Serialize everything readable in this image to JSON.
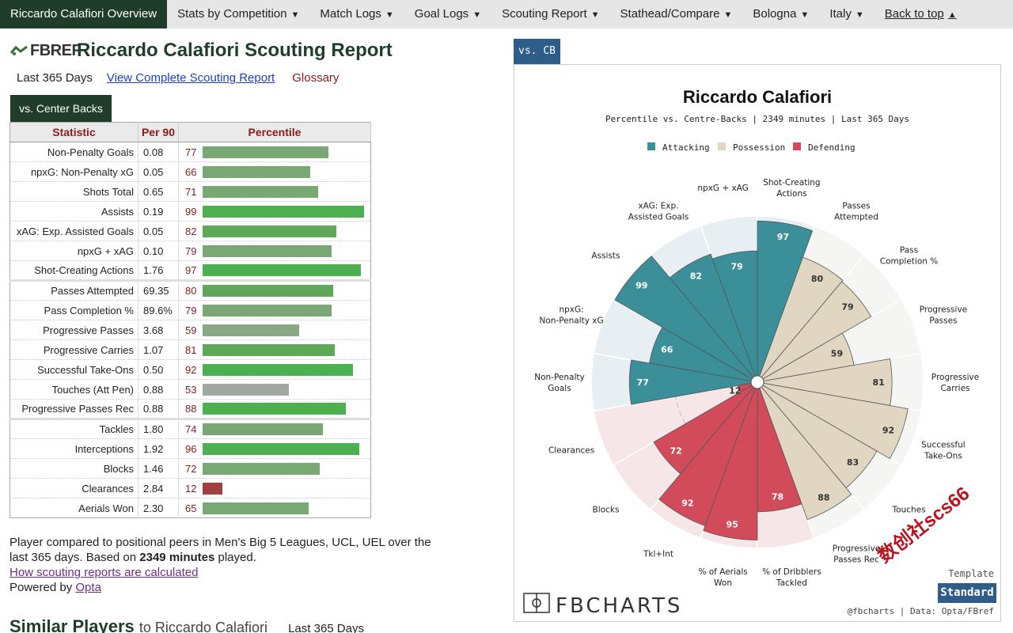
{
  "nav": [
    {
      "label": "Riccardo Calafiori Overview",
      "active": true,
      "caret": false
    },
    {
      "label": "Stats by Competition",
      "caret": true
    },
    {
      "label": "Match Logs",
      "caret": true
    },
    {
      "label": "Goal Logs",
      "caret": true
    },
    {
      "label": "Scouting Report",
      "caret": true
    },
    {
      "label": "Stathead/Compare",
      "caret": true
    },
    {
      "label": "Bologna",
      "caret": true
    },
    {
      "label": "Italy",
      "caret": true
    },
    {
      "label": "Back to top",
      "caret": true,
      "up": true
    }
  ],
  "logo_text": "FBREF",
  "title": "Riccardo Calafiori Scouting Report",
  "period": "Last 365 Days",
  "view_link": "View Complete Scouting Report",
  "glossary": "Glossary",
  "tab": "vs. Center Backs",
  "table": {
    "headers": [
      "Statistic",
      "Per 90",
      "Percentile"
    ],
    "rows": [
      {
        "stat": "Non-Penalty Goals",
        "p90": "0.08",
        "pct": 77,
        "color": "#7aa874"
      },
      {
        "stat": "npxG: Non-Penalty xG",
        "p90": "0.05",
        "pct": 66,
        "color": "#7aa874"
      },
      {
        "stat": "Shots Total",
        "p90": "0.65",
        "pct": 71,
        "color": "#7aa874"
      },
      {
        "stat": "Assists",
        "p90": "0.19",
        "pct": 99,
        "color": "#4caf50"
      },
      {
        "stat": "xAG: Exp. Assisted Goals",
        "p90": "0.05",
        "pct": 82,
        "color": "#5fa85a"
      },
      {
        "stat": "npxG + xAG",
        "p90": "0.10",
        "pct": 79,
        "color": "#7aa874"
      },
      {
        "stat": "Shot-Creating Actions",
        "p90": "1.76",
        "pct": 97,
        "color": "#4caf50"
      },
      {
        "stat": "Passes Attempted",
        "p90": "69.35",
        "pct": 80,
        "color": "#5fa85a",
        "gap": true
      },
      {
        "stat": "Pass Completion %",
        "p90": "89.6%",
        "pct": 79,
        "color": "#7aa874"
      },
      {
        "stat": "Progressive Passes",
        "p90": "3.68",
        "pct": 59,
        "color": "#8aa884"
      },
      {
        "stat": "Progressive Carries",
        "p90": "1.07",
        "pct": 81,
        "color": "#5fa85a"
      },
      {
        "stat": "Successful Take-Ons",
        "p90": "0.50",
        "pct": 92,
        "color": "#4caf50"
      },
      {
        "stat": "Touches (Att Pen)",
        "p90": "0.88",
        "pct": 53,
        "color": "#a0a8a0"
      },
      {
        "stat": "Progressive Passes Rec",
        "p90": "0.88",
        "pct": 88,
        "color": "#4caf50"
      },
      {
        "stat": "Tackles",
        "p90": "1.80",
        "pct": 74,
        "color": "#7aa874",
        "gap": true
      },
      {
        "stat": "Interceptions",
        "p90": "1.92",
        "pct": 96,
        "color": "#4caf50"
      },
      {
        "stat": "Blocks",
        "p90": "1.46",
        "pct": 72,
        "color": "#7aa874"
      },
      {
        "stat": "Clearances",
        "p90": "2.84",
        "pct": 12,
        "color": "#a04040"
      },
      {
        "stat": "Aerials Won",
        "p90": "2.30",
        "pct": 65,
        "color": "#7aa874"
      }
    ]
  },
  "footer": {
    "line1": "Player compared to positional peers in Men's Big 5 Leagues, UCL, UEL over the last 365 days. Based on ",
    "minutes": "2349 minutes",
    "line1_end": " played.",
    "howlink": "How scouting reports are calculated",
    "powered": "Powered by ",
    "opta": "Opta"
  },
  "similar": {
    "title": "Similar Players",
    "to": "to Riccardo Calafiori",
    "period": "Last 365 Days"
  },
  "chart_tab": "vs. CB",
  "chart_data": {
    "type": "polar-bar",
    "title": "Riccardo Calafiori",
    "subtitle": "Percentile vs. Centre-Backs | 2349 minutes | Last 365 Days",
    "legend": [
      {
        "name": "Attacking",
        "color": "#3a8f99"
      },
      {
        "name": "Possession",
        "color": "#e0d6c2"
      },
      {
        "name": "Defending",
        "color": "#d24b5a"
      }
    ],
    "bg_colors": {
      "Attacking": "#e8eff2",
      "Possession": "#f5f5f3",
      "Defending": "#f7e6e8"
    },
    "slices": [
      {
        "label": "Shot-Creating Actions",
        "value": 97,
        "group": "Attacking"
      },
      {
        "label": "Passes Attempted",
        "value": 80,
        "group": "Possession"
      },
      {
        "label": "Pass Completion %",
        "value": 79,
        "group": "Possession"
      },
      {
        "label": "Progressive Passes",
        "value": 59,
        "group": "Possession"
      },
      {
        "label": "Progressive Carries",
        "value": 81,
        "group": "Possession"
      },
      {
        "label": "Successful Take-Ons",
        "value": 92,
        "group": "Possession"
      },
      {
        "label": "Touches",
        "value": 83,
        "group": "Possession"
      },
      {
        "label": "Progressive Passes Rec",
        "value": 88,
        "group": "Possession"
      },
      {
        "label": "% of Dribblers Tackled",
        "value": 78,
        "group": "Defending"
      },
      {
        "label": "% of Aerials Won",
        "value": 95,
        "group": "Defending"
      },
      {
        "label": "Tkl+Int",
        "value": 92,
        "group": "Defending"
      },
      {
        "label": "Blocks",
        "value": 72,
        "group": "Defending"
      },
      {
        "label": "Clearances",
        "value": 12,
        "group": "Defending"
      },
      {
        "label": "Non-Penalty Goals",
        "value": 77,
        "group": "Attacking"
      },
      {
        "label": "npxG: Non-Penalty xG",
        "value": 66,
        "group": "Attacking"
      },
      {
        "label": "Assists",
        "value": 99,
        "group": "Attacking"
      },
      {
        "label": "xAG: Exp. Assisted Goals",
        "value": 82,
        "group": "Attacking"
      },
      {
        "label": "npxG + xAG",
        "value": 79,
        "group": "Attacking"
      }
    ],
    "rmax": 100
  },
  "chart_footer": {
    "brand": "FBCHARTS",
    "template_label": "Template",
    "template_value": "Standard",
    "credit": "@fbcharts | Data: Opta/FBref"
  },
  "watermark": "数创社scs66"
}
